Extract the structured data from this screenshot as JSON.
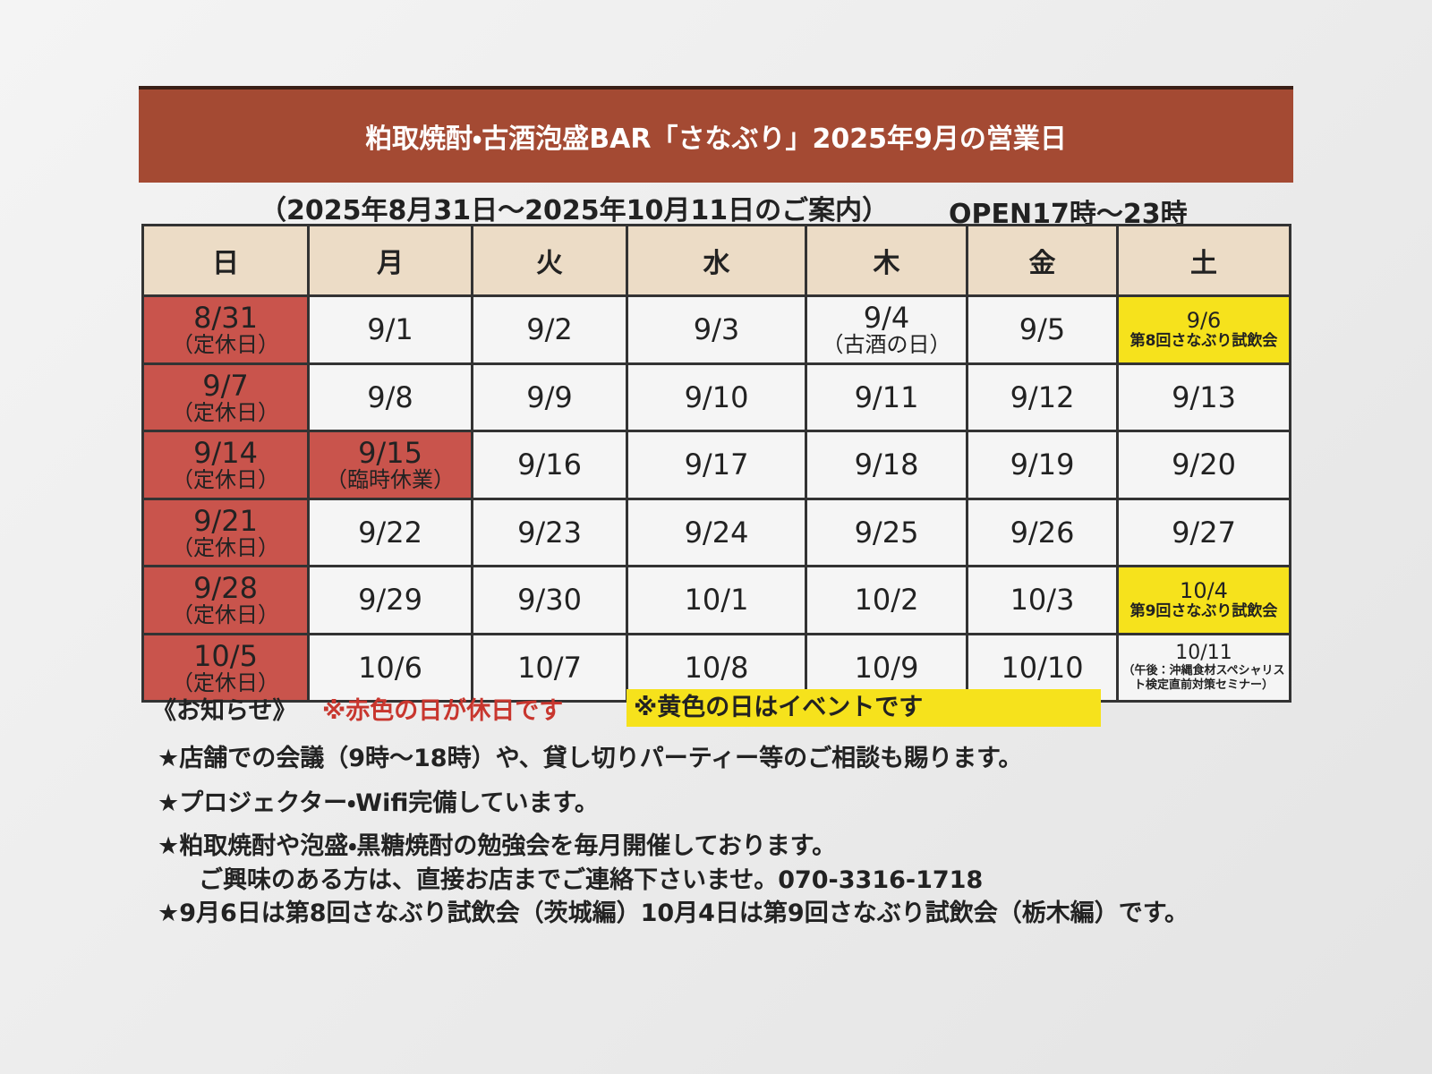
{
  "header": {
    "title": "粕取焼酎・古酒泡盛BAR「さなぶり」2025年9月の営業日",
    "subtitle": "（2025年8月31日～2025年10月11日のご案内）",
    "hours": "OPEN17時～23時"
  },
  "table": {
    "headers": [
      "日",
      "月",
      "火",
      "水",
      "木",
      "金",
      "土"
    ],
    "header_fill": "#ecdcc6",
    "rows": [
      [
        {
          "date": "8/31",
          "note": "（定休日）",
          "fill": "#c9544c"
        },
        {
          "date": "9/1"
        },
        {
          "date": "9/2"
        },
        {
          "date": "9/3"
        },
        {
          "date": "9/4",
          "note": "（古酒の日）"
        },
        {
          "date": "9/5"
        },
        {
          "date": "9/6",
          "note": "第8回さなぶり試飲会",
          "fill": "#f6e21c"
        }
      ],
      [
        {
          "date": "9/7",
          "note": "（定休日）",
          "fill": "#c9544c"
        },
        {
          "date": "9/8"
        },
        {
          "date": "9/9"
        },
        {
          "date": "9/10"
        },
        {
          "date": "9/11"
        },
        {
          "date": "9/12"
        },
        {
          "date": "9/13"
        }
      ],
      [
        {
          "date": "9/14",
          "note": "（定休日）",
          "fill": "#c9544c"
        },
        {
          "date": "9/15",
          "note": "（臨時休業）",
          "fill": "#c9544c"
        },
        {
          "date": "9/16"
        },
        {
          "date": "9/17"
        },
        {
          "date": "9/18"
        },
        {
          "date": "9/19"
        },
        {
          "date": "9/20"
        }
      ],
      [
        {
          "date": "9/21",
          "note": "（定休日）",
          "fill": "#c9544c"
        },
        {
          "date": "9/22"
        },
        {
          "date": "9/23"
        },
        {
          "date": "9/24"
        },
        {
          "date": "9/25"
        },
        {
          "date": "9/26"
        },
        {
          "date": "9/27"
        }
      ],
      [
        {
          "date": "9/28",
          "note": "（定休日）",
          "fill": "#c9544c"
        },
        {
          "date": "9/29"
        },
        {
          "date": "9/30"
        },
        {
          "date": "10/1"
        },
        {
          "date": "10/2"
        },
        {
          "date": "10/3"
        },
        {
          "date": "10/4",
          "note": "第9回さなぶり試飲会",
          "fill": "#f6e21c"
        }
      ],
      [
        {
          "date": "10/5",
          "note": "（定休日）",
          "fill": "#c9544c"
        },
        {
          "date": "10/6"
        },
        {
          "date": "10/7"
        },
        {
          "date": "10/8"
        },
        {
          "date": "10/9"
        },
        {
          "date": "10/10"
        },
        {
          "date": "10/11",
          "note": "（午後：沖縄食材スペシャリスト検定直前対策セミナー）"
        }
      ]
    ]
  },
  "notice": {
    "label": "《お知らせ》",
    "red_note": "※赤色の日が休日です",
    "yellow_note": "※黄色の日はイベントです",
    "lines": [
      "★店舗での会議（9時～18時）や、貸し切りパーティー等のご相談も賜ります。",
      "★プロジェクター・Wifi完備しています。",
      "★粕取焼酎や泡盛・黒糖焼酎の勉強会を毎月開催しております。",
      "ご興味のある方は、直接お店までご連絡下さいませ。070-3316-1718",
      "★9月6日は第8回さなぶり試飲会（茨城編）10月4日は第9回さなぶり試飲会（栃木編）です。"
    ]
  }
}
